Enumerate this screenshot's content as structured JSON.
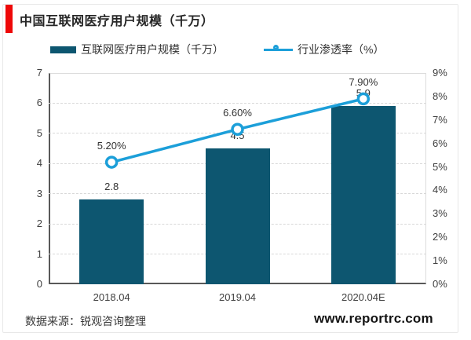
{
  "page": {
    "title": "中国互联网医疗用户规模（千万）",
    "source_note": "数据来源：锐观咨询整理",
    "watermark": "www.reportrc.com",
    "accent_color": "#ee0808"
  },
  "legend": [
    {
      "label": "互联网医疗用户规模（千万）",
      "type": "bar",
      "color": "#0d5670"
    },
    {
      "label": "行业渗透率（%）",
      "type": "line",
      "color": "#1c9fd9"
    }
  ],
  "chart_data": {
    "type": "bar+line combo",
    "categories": [
      "2018.04",
      "2019.04",
      "2020.04E"
    ],
    "series": [
      {
        "name": "互联网医疗用户规模（千万）",
        "type": "bar",
        "axis": "left",
        "values": [
          2.8,
          4.5,
          5.9
        ],
        "labels": [
          "2.8",
          "4.5",
          "5.9"
        ],
        "color": "#0d5670"
      },
      {
        "name": "行业渗透率（%）",
        "type": "line",
        "axis": "right",
        "values": [
          5.2,
          6.6,
          7.9
        ],
        "labels": [
          "5.20%",
          "6.60%",
          "7.90%"
        ],
        "color": "#1c9fd9"
      }
    ],
    "left_axis": {
      "min": 0,
      "max": 7,
      "ticks": [
        "7",
        "6",
        "5",
        "4",
        "3",
        "2",
        "1",
        "0"
      ]
    },
    "right_axis": {
      "min": 0,
      "max": 9,
      "ticks": [
        "9%",
        "8%",
        "7%",
        "6%",
        "5%",
        "4%",
        "3%",
        "2%",
        "1%",
        "0%"
      ]
    },
    "grid": "horizontal dashed",
    "legend_position": "top"
  }
}
